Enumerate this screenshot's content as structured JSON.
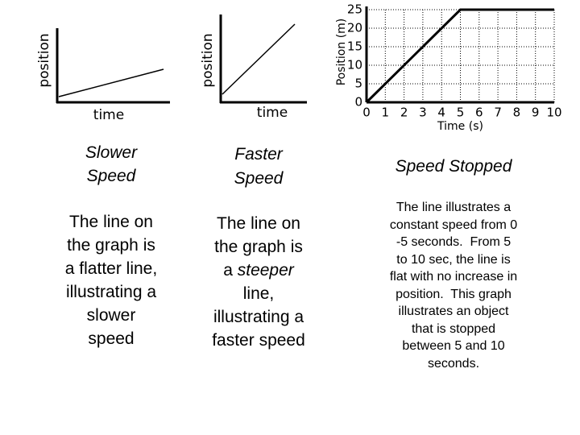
{
  "graphs": [
    {
      "ylabel": "position",
      "xlabel": "time"
    },
    {
      "ylabel": "position",
      "xlabel": "time"
    }
  ],
  "chart_data": {
    "type": "line",
    "x": [
      0,
      5,
      10
    ],
    "values": [
      0,
      25,
      25
    ],
    "color": "#000000",
    "xlim": [
      0,
      10
    ],
    "ylim": [
      0,
      25
    ],
    "xticks": [
      0,
      1,
      2,
      3,
      4,
      5,
      6,
      7,
      8,
      9,
      10
    ],
    "yticks": [
      0,
      5,
      10,
      15,
      20,
      25
    ],
    "xlabel": "Time (s)",
    "ylabel": "Position (m)",
    "grid": true
  },
  "columns": [
    {
      "title": [
        "Slower",
        "Speed"
      ],
      "body": [
        [
          "The line on"
        ],
        [
          "the graph is"
        ],
        [
          "a flatter line,"
        ],
        [
          "illustrating a"
        ],
        [
          "slower"
        ],
        [
          "speed"
        ]
      ]
    },
    {
      "title": [
        "Faster",
        "Speed"
      ],
      "body": [
        [
          "The line on"
        ],
        [
          "the graph is"
        ],
        [
          "a ",
          {
            "em": "steeper"
          }
        ],
        [
          "line,"
        ],
        [
          "illustrating a"
        ],
        [
          "faster speed"
        ]
      ]
    },
    {
      "title": [
        "Speed Stopped"
      ],
      "body": [
        [
          "The line illustrates a"
        ],
        [
          "constant speed from 0"
        ],
        [
          "-5 seconds.  From 5"
        ],
        [
          "to 10 sec, the line is"
        ],
        [
          "flat with no increase in"
        ],
        [
          "position.  This graph"
        ],
        [
          "illustrates an object"
        ],
        [
          "that is stopped"
        ],
        [
          "between 5 and 10"
        ],
        [
          "seconds."
        ]
      ]
    }
  ]
}
